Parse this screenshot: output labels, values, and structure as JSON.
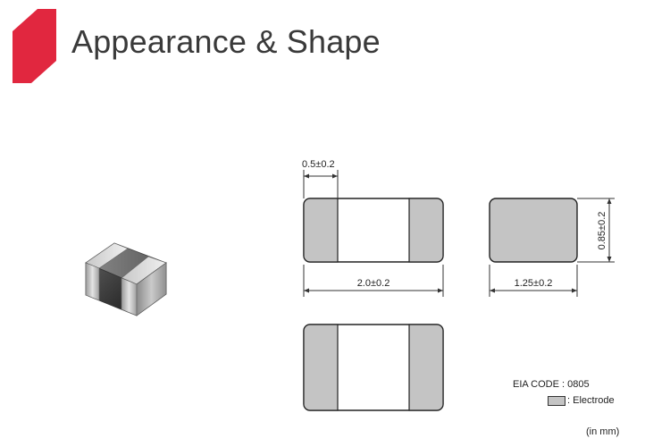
{
  "header": {
    "title": "Appearance & Shape",
    "accent_color": "#e1273f"
  },
  "dimensions": {
    "electrode_width": "0.5±0.2",
    "length": "2.0±0.2",
    "width": "1.25±0.2",
    "height": "0.85±0.2"
  },
  "legend": {
    "eia_code": "EIA CODE : 0805",
    "electrode_label": ": Electrode",
    "electrode_color": "#c4c4c4"
  },
  "units": "(in mm)"
}
